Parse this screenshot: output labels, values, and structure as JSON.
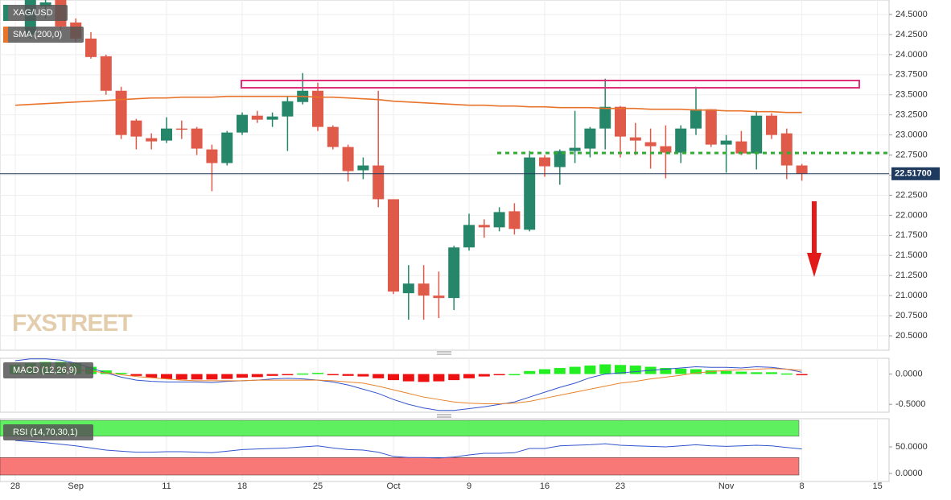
{
  "chart_data": [
    {
      "type": "candlestick",
      "name": "XAG/USD",
      "categories": [
        "28",
        null,
        null,
        null,
        "Sep",
        null,
        null,
        null,
        null,
        null,
        "11",
        null,
        null,
        null,
        null,
        "18",
        null,
        null,
        null,
        null,
        "25",
        null,
        null,
        null,
        null,
        "Oct",
        null,
        null,
        null,
        null,
        "9",
        null,
        null,
        null,
        null,
        "16",
        null,
        null,
        null,
        null,
        "23",
        null,
        null,
        null,
        null,
        null,
        null,
        "Nov",
        null,
        null,
        null,
        null,
        "8",
        null,
        null,
        null,
        null,
        "15"
      ],
      "open": [
        null,
        24.25,
        24.6,
        24.68,
        24.4,
        24.2,
        23.98,
        23.55,
        23.18,
        22.96,
        22.93,
        23.08,
        23.08,
        22.82,
        22.65,
        23.03,
        23.24,
        23.19,
        23.23,
        23.41,
        23.55,
        23.1,
        22.85,
        22.56,
        22.62,
        22.2,
        21.03,
        21.15,
        21.0,
        20.97,
        21.6,
        21.88,
        21.85,
        22.05,
        21.82,
        22.72,
        22.6,
        22.8,
        22.83,
        23.08,
        23.35,
        22.97,
        22.91,
        22.86,
        22.78,
        23.08,
        23.32,
        22.88,
        22.92,
        22.77,
        23.24,
        23.02,
        22.62,
        null,
        null,
        null,
        null,
        null
      ],
      "high": [
        null,
        24.68,
        24.68,
        24.68,
        24.45,
        24.28,
        24.0,
        23.6,
        23.2,
        23.02,
        23.22,
        23.18,
        23.1,
        22.88,
        23.05,
        23.28,
        23.3,
        23.28,
        23.48,
        23.77,
        23.65,
        23.12,
        22.88,
        22.72,
        23.55,
        22.2,
        21.38,
        21.38,
        21.3,
        21.62,
        22.02,
        21.95,
        22.1,
        22.15,
        22.8,
        22.75,
        22.82,
        23.3,
        23.1,
        23.7,
        23.36,
        23.15,
        23.08,
        23.12,
        23.12,
        23.6,
        23.32,
        23.0,
        23.05,
        23.3,
        23.27,
        23.08,
        22.64,
        null,
        null,
        null,
        null,
        null
      ],
      "low": [
        null,
        24.2,
        24.45,
        24.3,
        24.15,
        23.95,
        23.5,
        22.95,
        22.82,
        22.82,
        22.9,
        22.95,
        22.75,
        22.3,
        22.62,
        23.0,
        23.15,
        23.1,
        22.8,
        23.38,
        23.05,
        22.82,
        22.42,
        22.45,
        22.1,
        21.02,
        20.7,
        20.7,
        20.72,
        20.82,
        21.56,
        21.72,
        21.8,
        21.76,
        21.8,
        22.48,
        22.38,
        22.65,
        22.72,
        22.82,
        22.72,
        22.75,
        22.58,
        22.46,
        22.65,
        23.0,
        22.85,
        22.53,
        22.75,
        22.57,
        22.95,
        22.45,
        22.43,
        null,
        null,
        null,
        null,
        null
      ],
      "close": [
        null,
        24.68,
        24.65,
        24.35,
        24.2,
        23.97,
        23.55,
        23.0,
        22.98,
        22.92,
        23.08,
        23.07,
        22.83,
        22.65,
        23.03,
        23.25,
        23.19,
        23.23,
        23.42,
        23.55,
        23.1,
        22.85,
        22.55,
        22.62,
        22.2,
        21.05,
        21.15,
        21.0,
        20.97,
        21.6,
        21.88,
        21.85,
        22.04,
        21.83,
        22.72,
        22.61,
        22.8,
        22.84,
        23.08,
        23.35,
        22.98,
        22.93,
        22.86,
        22.78,
        23.08,
        23.32,
        22.88,
        22.93,
        22.77,
        23.24,
        23.0,
        22.62,
        22.517,
        null,
        null,
        null,
        null,
        null
      ],
      "up_color": "#26866a",
      "down_color": "#e05a4a",
      "overlays": [
        {
          "name": "SMA (200,0)",
          "color": "#e8732a",
          "values": [
            23.37,
            23.38,
            23.39,
            23.4,
            23.41,
            23.42,
            23.43,
            23.44,
            23.45,
            23.46,
            23.46,
            23.47,
            23.47,
            23.47,
            23.48,
            23.48,
            23.48,
            23.48,
            23.48,
            23.48,
            23.47,
            23.47,
            23.46,
            23.45,
            23.44,
            23.42,
            23.41,
            23.4,
            23.39,
            23.38,
            23.37,
            23.37,
            23.36,
            23.36,
            23.35,
            23.35,
            23.34,
            23.34,
            23.34,
            23.33,
            23.33,
            23.33,
            23.32,
            23.32,
            23.32,
            23.31,
            23.31,
            23.3,
            23.3,
            23.29,
            23.29,
            23.28,
            23.28,
            null,
            null,
            null,
            null,
            null
          ]
        }
      ],
      "last_price": {
        "value": 22.517,
        "label": "22.51700"
      },
      "watermark": "FXSTREET",
      "ylim": [
        20.32,
        24.68
      ],
      "yticks": [
        {
          "value": 20.5,
          "label": "20.5000"
        },
        {
          "value": 20.75,
          "label": "20.7500"
        },
        {
          "value": 21,
          "label": "21.0000"
        },
        {
          "value": 21.25,
          "label": "21.2500"
        },
        {
          "value": 21.5,
          "label": "21.5000"
        },
        {
          "value": 21.75,
          "label": "21.7500"
        },
        {
          "value": 22,
          "label": "22.0000"
        },
        {
          "value": 22.25,
          "label": "22.2500"
        },
        {
          "value": 22.5,
          "label": "22.5000"
        },
        {
          "value": 22.75,
          "label": "22.7500"
        },
        {
          "value": 23,
          "label": "23.0000"
        },
        {
          "value": 23.25,
          "label": "23.2500"
        },
        {
          "value": 23.5,
          "label": "23.5000"
        },
        {
          "value": 23.75,
          "label": "23.7500"
        },
        {
          "value": 24,
          "label": "24.0000"
        },
        {
          "value": 24.25,
          "label": "24.2500"
        },
        {
          "value": 24.5,
          "label": "24.5000"
        }
      ],
      "grid": true
    },
    {
      "type": "macd",
      "name": "MACD (12,26,9)",
      "histogram": [
        0.15,
        0.18,
        0.2,
        0.2,
        0.18,
        0.12,
        0.06,
        0.02,
        -0.03,
        -0.06,
        -0.08,
        -0.09,
        -0.09,
        -0.09,
        -0.08,
        -0.06,
        -0.05,
        -0.03,
        -0.01,
        0.01,
        0.02,
        -0.01,
        -0.03,
        -0.04,
        -0.07,
        -0.1,
        -0.12,
        -0.13,
        -0.12,
        -0.1,
        -0.07,
        -0.04,
        -0.02,
        0.0,
        0.05,
        0.08,
        0.1,
        0.12,
        0.14,
        0.16,
        0.15,
        0.14,
        0.12,
        0.1,
        0.09,
        0.08,
        0.06,
        0.05,
        0.04,
        0.03,
        0.03,
        0.01,
        -0.02,
        null,
        null,
        null,
        null,
        null
      ],
      "macd": [
        0.22,
        0.25,
        0.25,
        0.23,
        0.18,
        0.1,
        0.02,
        -0.05,
        -0.1,
        -0.12,
        -0.13,
        -0.13,
        -0.13,
        -0.14,
        -0.12,
        -0.11,
        -0.1,
        -0.08,
        -0.07,
        -0.08,
        -0.1,
        -0.13,
        -0.18,
        -0.25,
        -0.32,
        -0.42,
        -0.5,
        -0.56,
        -0.6,
        -0.6,
        -0.57,
        -0.54,
        -0.5,
        -0.46,
        -0.38,
        -0.3,
        -0.22,
        -0.15,
        -0.06,
        0.0,
        0.02,
        0.04,
        0.06,
        0.08,
        0.1,
        0.12,
        0.11,
        0.11,
        0.1,
        0.12,
        0.11,
        0.08,
        0.03,
        null,
        null,
        null,
        null,
        null
      ],
      "signal": [
        0.08,
        0.1,
        0.1,
        0.09,
        0.07,
        0.05,
        0.02,
        -0.01,
        -0.04,
        -0.06,
        -0.08,
        -0.1,
        -0.11,
        -0.11,
        -0.11,
        -0.11,
        -0.1,
        -0.1,
        -0.1,
        -0.1,
        -0.1,
        -0.11,
        -0.13,
        -0.15,
        -0.2,
        -0.26,
        -0.32,
        -0.38,
        -0.42,
        -0.46,
        -0.48,
        -0.49,
        -0.49,
        -0.48,
        -0.45,
        -0.4,
        -0.35,
        -0.3,
        -0.25,
        -0.2,
        -0.15,
        -0.12,
        -0.08,
        -0.05,
        -0.02,
        0.02,
        0.04,
        0.06,
        0.07,
        0.08,
        0.09,
        0.08,
        0.06,
        null,
        null,
        null,
        null,
        null
      ],
      "up_color": "#22ee22",
      "down_color": "#ee1111",
      "macd_color": "#3355cc",
      "signal_color": "#e8832a",
      "ylim": [
        -0.63,
        0.26
      ],
      "yticks": [
        {
          "value": 0,
          "label": "0.0000"
        },
        {
          "value": -0.5,
          "label": "-0.5000"
        }
      ]
    },
    {
      "type": "line",
      "name": "RSI (14,70,30,1)",
      "values": [
        62,
        60,
        58,
        55,
        52,
        48,
        44,
        42,
        40,
        40,
        41,
        41,
        40,
        39,
        42,
        45,
        46,
        47,
        48,
        50,
        52,
        48,
        45,
        44,
        40,
        32,
        30,
        30,
        29,
        31,
        35,
        38,
        38,
        39,
        47,
        47,
        52,
        53,
        54,
        56,
        53,
        52,
        51,
        50,
        52,
        54,
        52,
        51,
        52,
        53,
        52,
        49,
        46,
        null,
        null,
        null,
        null,
        null
      ],
      "color": "#3355cc",
      "overbought": 70,
      "oversold": 30,
      "ylim": [
        -15,
        103
      ],
      "yticks": [
        {
          "value": 50,
          "label": "50.0000"
        },
        {
          "value": 0,
          "label": "0.0000"
        }
      ]
    }
  ]
}
